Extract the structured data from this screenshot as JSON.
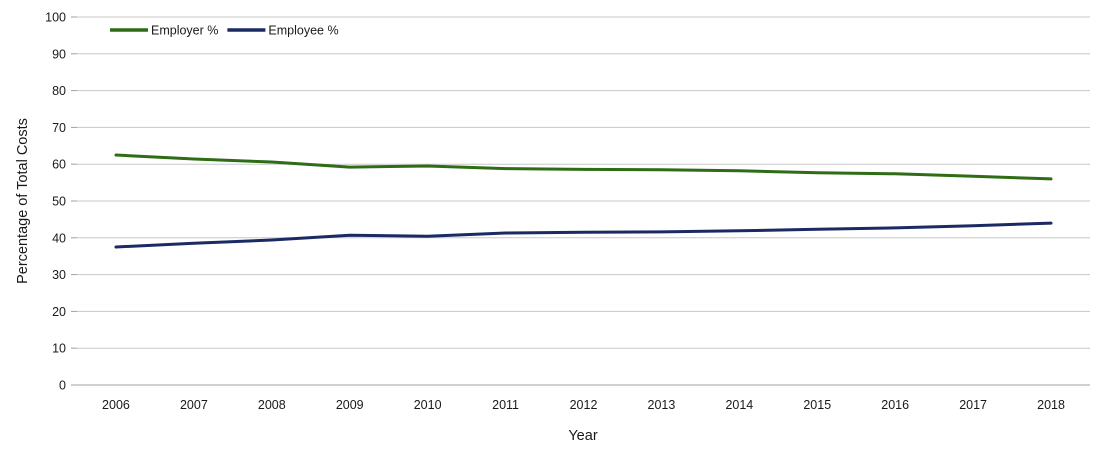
{
  "chart_data": {
    "type": "line",
    "title": "",
    "xlabel": "Year",
    "ylabel": "Percentage of Total Costs",
    "ylim": [
      0,
      100
    ],
    "ytick_step": 10,
    "grid": true,
    "legend_position": "top-left-horizontal",
    "categories": [
      "2006",
      "2007",
      "2008",
      "2009",
      "2010",
      "2011",
      "2012",
      "2013",
      "2014",
      "2015",
      "2016",
      "2017",
      "2018"
    ],
    "series": [
      {
        "name": "Employer %",
        "color": "#2e6c16",
        "values": [
          62.5,
          61.4,
          60.6,
          59.2,
          59.5,
          58.8,
          58.6,
          58.5,
          58.2,
          57.7,
          57.4,
          56.7,
          56.0
        ]
      },
      {
        "name": "Employee %",
        "color": "#1b2a63",
        "values": [
          37.5,
          38.5,
          39.4,
          40.7,
          40.4,
          41.3,
          41.5,
          41.6,
          41.9,
          42.3,
          42.7,
          43.3,
          44.0
        ]
      }
    ]
  },
  "colors": {
    "background": "#ffffff",
    "gridline": "#c8c8c8",
    "axis_line": "#a0a0a0",
    "text": "#1a1a1a",
    "employer_line": "#2e6c16",
    "employee_line": "#1b2a63"
  }
}
